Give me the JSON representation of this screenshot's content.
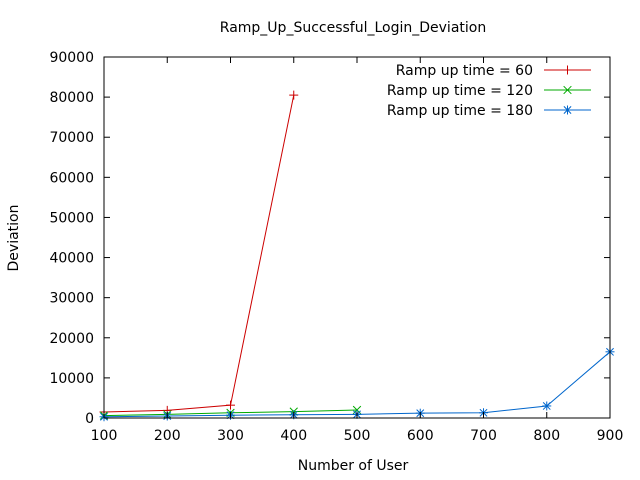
{
  "chart_data": {
    "type": "line",
    "title": "Ramp_Up_Successful_Login_Deviation",
    "xlabel": "Number of User",
    "ylabel": "Deviation",
    "xlim": [
      100,
      900
    ],
    "ylim": [
      0,
      90000
    ],
    "xticks": [
      100,
      200,
      300,
      400,
      500,
      600,
      700,
      800,
      900
    ],
    "yticks": [
      0,
      10000,
      20000,
      30000,
      40000,
      50000,
      60000,
      70000,
      80000,
      90000
    ],
    "grid": false,
    "legend_position": "top-right",
    "series": [
      {
        "name": "Ramp up time = 60",
        "color": "#cc0000",
        "marker": "plus",
        "x": [
          100,
          200,
          300,
          400
        ],
        "y": [
          1500,
          1900,
          3200,
          80500
        ]
      },
      {
        "name": "Ramp up time = 120",
        "color": "#00aa00",
        "marker": "cross",
        "x": [
          100,
          200,
          300,
          400,
          500
        ],
        "y": [
          600,
          900,
          1300,
          1600,
          2000
        ]
      },
      {
        "name": "Ramp up time = 180",
        "color": "#0066cc",
        "marker": "star",
        "x": [
          100,
          200,
          300,
          400,
          500,
          600,
          700,
          800,
          900
        ],
        "y": [
          300,
          500,
          700,
          800,
          900,
          1200,
          1300,
          3000,
          16500
        ]
      }
    ]
  }
}
